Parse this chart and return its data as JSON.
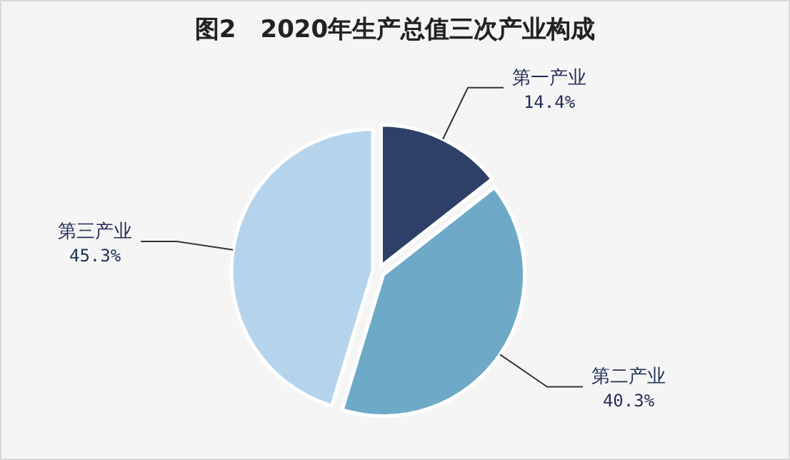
{
  "chart_data": {
    "type": "pie",
    "title": "图2　2020年生产总值三次产业构成",
    "categories": [
      "第一产业",
      "第二产业",
      "第三产业"
    ],
    "values": [
      14.4,
      40.3,
      45.3
    ],
    "value_labels": [
      "14.4%",
      "40.3%",
      "45.3%"
    ],
    "colors": [
      "#2e4068",
      "#6ea9c8",
      "#b5d4ec"
    ]
  }
}
